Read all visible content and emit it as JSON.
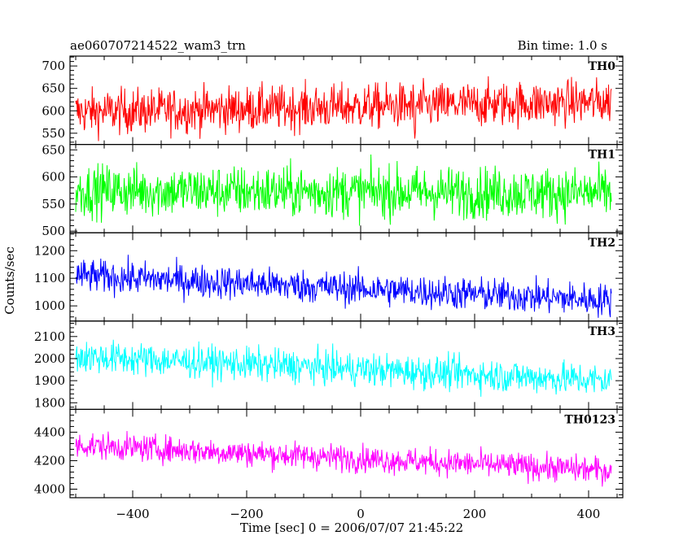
{
  "title_left": "ae060707214522_wam3_trn",
  "title_right": "Bin time: 1.0 s",
  "ylabel": "Counts/sec",
  "xlabel": "Time [sec] 0 = 2006/07/07 21:45:22",
  "chart_data": {
    "type": "line",
    "x_range": [
      -500,
      440
    ],
    "xlim": [
      -510,
      460
    ],
    "x_ticks": [
      -400,
      -200,
      0,
      200,
      400
    ],
    "bin_time_s": 1.0,
    "panels": [
      {
        "name": "TH0",
        "color": "#ff0000",
        "ylim": [
          525,
          722
        ],
        "y_ticks": [
          550,
          600,
          650,
          700
        ],
        "trend": {
          "start": 597,
          "end": 620,
          "noise": 40
        },
        "dips": [
          {
            "x": 95,
            "depth": 60
          }
        ]
      },
      {
        "name": "TH1",
        "color": "#00ff00",
        "ylim": [
          497,
          660
        ],
        "y_ticks": [
          500,
          550,
          600,
          650
        ],
        "trend": {
          "start": 575,
          "end": 570,
          "noise": 38
        }
      },
      {
        "name": "TH2",
        "color": "#0000ff",
        "ylim": [
          945,
          1265
        ],
        "y_ticks": [
          1000,
          1100,
          1200
        ],
        "trend": {
          "start": 1110,
          "end": 1020,
          "noise": 48
        }
      },
      {
        "name": "TH3",
        "color": "#00ffff",
        "ylim": [
          1770,
          2170
        ],
        "y_ticks": [
          1800,
          1900,
          2000,
          2100
        ],
        "trend": {
          "start": 2010,
          "end": 1900,
          "noise": 60
        }
      },
      {
        "name": "TH0123",
        "color": "#ff00ff",
        "ylim": [
          3940,
          4560
        ],
        "y_ticks": [
          4000,
          4200,
          4400
        ],
        "trend": {
          "start": 4310,
          "end": 4130,
          "noise": 75
        }
      }
    ]
  }
}
